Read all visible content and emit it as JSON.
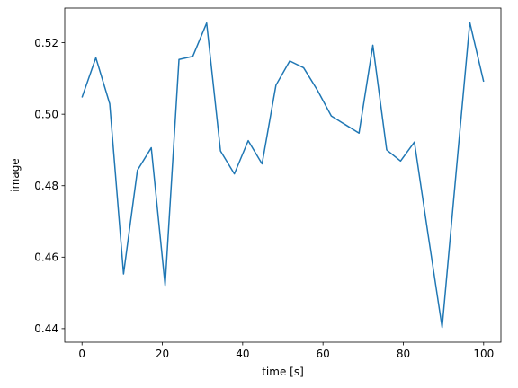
{
  "chart_data": {
    "type": "line",
    "xlabel": "time [s]",
    "ylabel": "image",
    "xlim": [
      -4.3,
      104.3
    ],
    "ylim": [
      0.4362,
      0.5297
    ],
    "xticks": [
      0,
      20,
      40,
      60,
      80,
      100
    ],
    "xtick_labels": [
      "0",
      "20",
      "40",
      "60",
      "80",
      "100"
    ],
    "yticks": [
      0.44,
      0.46,
      0.48,
      0.5,
      0.52
    ],
    "ytick_labels": [
      "0.44",
      "0.46",
      "0.48",
      "0.50",
      "0.52"
    ],
    "grid": false,
    "series": [
      {
        "color": "#1f77b4",
        "x": [
          0,
          3.45,
          6.9,
          10.34,
          13.79,
          17.24,
          20.69,
          24.14,
          27.59,
          31.03,
          34.48,
          37.93,
          41.38,
          44.83,
          48.28,
          51.72,
          55.17,
          58.62,
          62.07,
          65.52,
          68.97,
          72.41,
          75.86,
          79.31,
          82.76,
          86.21,
          89.66,
          93.1,
          96.55,
          100
        ],
        "y": [
          0.5047,
          0.5158,
          0.5029,
          0.4553,
          0.4843,
          0.4906,
          0.4521,
          0.5153,
          0.5162,
          0.5255,
          0.4897,
          0.4833,
          0.4926,
          0.4861,
          0.5081,
          0.5149,
          0.513,
          0.5067,
          0.4995,
          0.4971,
          0.4947,
          0.5193,
          0.49,
          0.4869,
          0.4922,
          0.466,
          0.4403,
          0.4832,
          0.5257,
          0.5091
        ]
      }
    ]
  }
}
